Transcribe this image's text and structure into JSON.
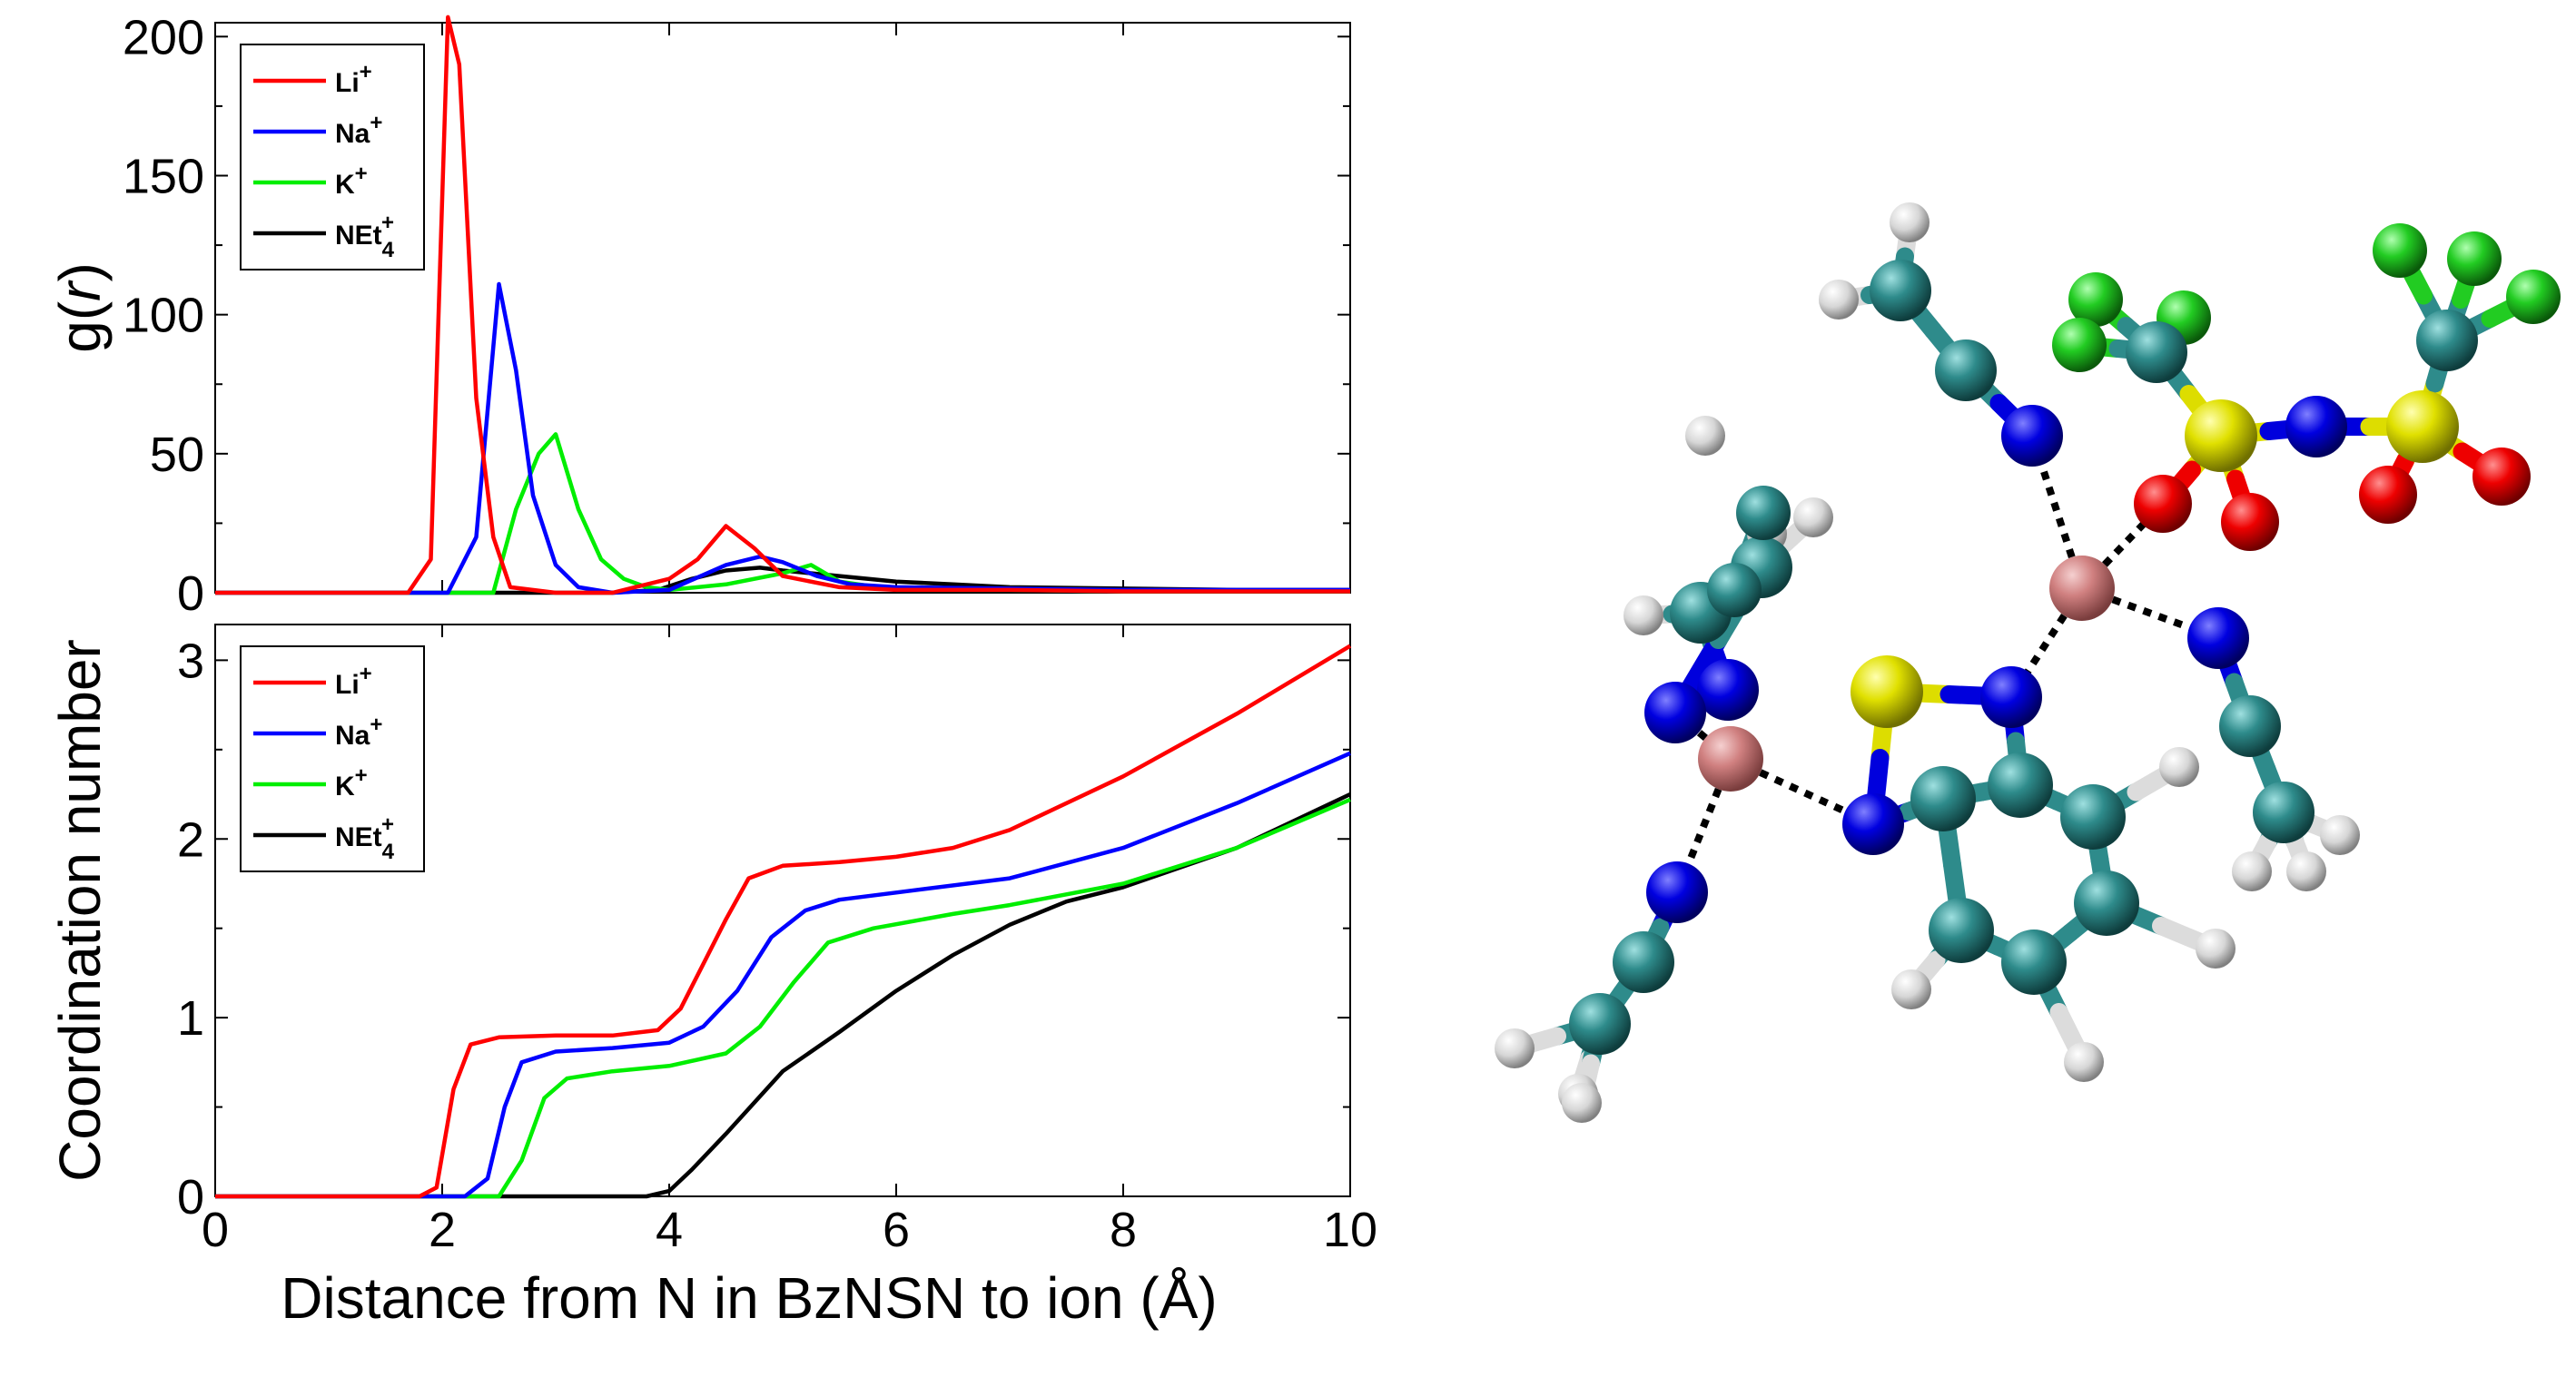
{
  "chart_data": [
    {
      "type": "line",
      "xlabel": "",
      "ylabel": "g(r)",
      "xlim": [
        0,
        10
      ],
      "ylim": [
        0,
        205
      ],
      "xticks": [
        0,
        2,
        4,
        6,
        8,
        10
      ],
      "yticks": [
        0,
        50,
        100,
        150,
        200
      ],
      "legend_position": "top-left",
      "series": [
        {
          "name": "Li+",
          "color": "#ff0000",
          "x": [
            0,
            1.7,
            1.9,
            2.05,
            2.15,
            2.3,
            2.45,
            2.6,
            3.0,
            3.5,
            4.0,
            4.25,
            4.5,
            4.75,
            5.0,
            5.5,
            6.0,
            7.0,
            8.0,
            9.0,
            10.0
          ],
          "y": [
            0,
            0,
            12,
            207,
            190,
            70,
            20,
            2,
            0,
            0,
            5,
            12,
            24,
            16,
            6,
            2,
            1,
            1,
            0.5,
            0.5,
            0.5
          ]
        },
        {
          "name": "Na+",
          "color": "#0000ff",
          "x": [
            0,
            2.05,
            2.3,
            2.5,
            2.65,
            2.8,
            3.0,
            3.2,
            3.5,
            4.0,
            4.5,
            4.8,
            5.0,
            5.3,
            5.6,
            6.0,
            7.0,
            8.0,
            9.0,
            10.0
          ],
          "y": [
            0,
            0,
            20,
            111,
            80,
            35,
            10,
            2,
            0,
            1,
            10,
            13,
            11,
            6,
            3,
            2,
            1.5,
            1,
            1,
            1
          ]
        },
        {
          "name": "K+",
          "color": "#00ee00",
          "x": [
            0,
            2.45,
            2.65,
            2.85,
            3.0,
            3.2,
            3.4,
            3.6,
            3.8,
            4.0,
            4.5,
            5.0,
            5.25,
            5.5,
            6.0,
            7.0,
            8.0,
            9.0,
            10.0
          ],
          "y": [
            0,
            0,
            30,
            50,
            57,
            30,
            12,
            5,
            2,
            1,
            3,
            7,
            10,
            4,
            1,
            1,
            0.5,
            0.5,
            0.5
          ]
        },
        {
          "name": "NEt4+",
          "color": "#000000",
          "x": [
            0,
            3.5,
            3.9,
            4.2,
            4.5,
            4.8,
            5.0,
            5.5,
            6.0,
            6.5,
            7.0,
            8.0,
            9.0,
            10.0
          ],
          "y": [
            0,
            0,
            1,
            5,
            8,
            9,
            8,
            6,
            4,
            3,
            2,
            1.5,
            1,
            1
          ]
        }
      ]
    },
    {
      "type": "line",
      "xlabel": "Distance from N in BzNSN to ion (Å)",
      "ylabel": "Coordination number",
      "xlim": [
        0,
        10
      ],
      "ylim": [
        0,
        3.2
      ],
      "xticks": [
        0,
        2,
        4,
        6,
        8,
        10
      ],
      "yticks": [
        0,
        1,
        2,
        3
      ],
      "legend_position": "top-left",
      "series": [
        {
          "name": "Li+",
          "color": "#ff0000",
          "x": [
            0,
            1.8,
            1.95,
            2.1,
            2.25,
            2.5,
            3.0,
            3.5,
            3.9,
            4.1,
            4.3,
            4.5,
            4.7,
            5.0,
            5.5,
            6.0,
            6.5,
            7.0,
            8.0,
            9.0,
            10.0
          ],
          "y": [
            0,
            0,
            0.05,
            0.6,
            0.85,
            0.89,
            0.9,
            0.9,
            0.93,
            1.05,
            1.3,
            1.55,
            1.78,
            1.85,
            1.87,
            1.9,
            1.95,
            2.05,
            2.35,
            2.7,
            3.08
          ]
        },
        {
          "name": "Na+",
          "color": "#0000ff",
          "x": [
            0,
            2.2,
            2.4,
            2.55,
            2.7,
            3.0,
            3.5,
            4.0,
            4.3,
            4.6,
            4.9,
            5.2,
            5.5,
            6.0,
            7.0,
            8.0,
            9.0,
            10.0
          ],
          "y": [
            0,
            0,
            0.1,
            0.5,
            0.75,
            0.81,
            0.83,
            0.86,
            0.95,
            1.15,
            1.45,
            1.6,
            1.66,
            1.7,
            1.78,
            1.95,
            2.2,
            2.48
          ]
        },
        {
          "name": "K+",
          "color": "#00ee00",
          "x": [
            0,
            2.5,
            2.7,
            2.9,
            3.1,
            3.5,
            4.0,
            4.5,
            4.8,
            5.1,
            5.4,
            5.8,
            6.5,
            7.0,
            8.0,
            9.0,
            10.0
          ],
          "y": [
            0,
            0,
            0.2,
            0.55,
            0.66,
            0.7,
            0.73,
            0.8,
            0.95,
            1.2,
            1.42,
            1.5,
            1.58,
            1.63,
            1.75,
            1.95,
            2.22
          ]
        },
        {
          "name": "NEt4+",
          "color": "#000000",
          "x": [
            0,
            3.8,
            4.0,
            4.2,
            4.5,
            5.0,
            5.5,
            6.0,
            6.5,
            7.0,
            7.5,
            8.0,
            9.0,
            10.0
          ],
          "y": [
            0,
            0,
            0.03,
            0.15,
            0.35,
            0.7,
            0.92,
            1.15,
            1.35,
            1.52,
            1.65,
            1.73,
            1.95,
            2.25
          ]
        }
      ]
    }
  ],
  "legend_labels": [
    {
      "base": "Li",
      "sup": "+",
      "sub": ""
    },
    {
      "base": "Na",
      "sup": "+",
      "sub": ""
    },
    {
      "base": "K",
      "sup": "+",
      "sub": ""
    },
    {
      "base": "NEt",
      "sup": "+",
      "sub": "4"
    }
  ],
  "ylabel_top": {
    "prefix": "g(",
    "var": "r",
    "suffix": ")"
  },
  "molecule": {
    "atom_colors": {
      "C": "#2e8b8b",
      "H": "#dcdcdc",
      "N": "#0000dd",
      "S": "#dddd00",
      "O": "#ee0000",
      "F": "#22cc22",
      "ion": "#d08080"
    }
  }
}
